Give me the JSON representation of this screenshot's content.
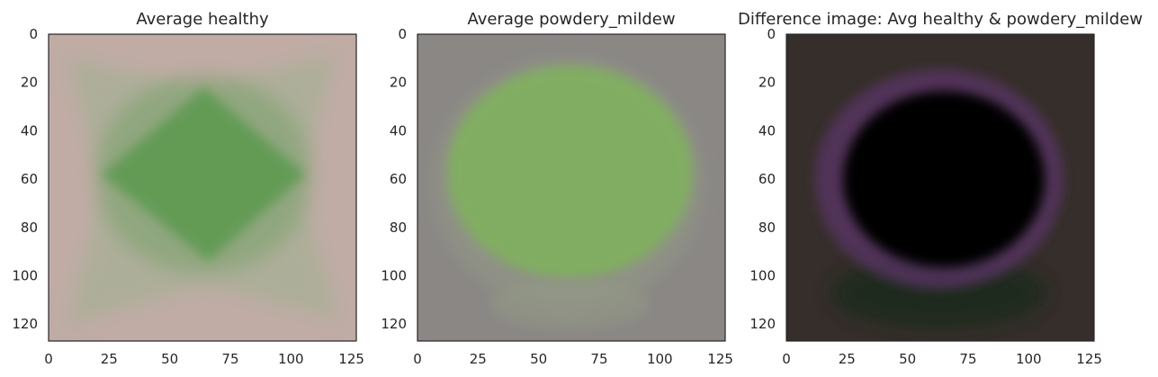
{
  "chart_data": [
    {
      "type": "heatmap",
      "title": "Average healthy",
      "xlabel": "",
      "ylabel": "",
      "xlim": [
        0,
        127
      ],
      "ylim": [
        127,
        0
      ],
      "xticks": [
        "0",
        "25",
        "50",
        "75",
        "100",
        "125"
      ],
      "yticks": [
        "0",
        "20",
        "40",
        "60",
        "80",
        "100",
        "120"
      ],
      "grid": false,
      "colors": {
        "background": "#c0aca5",
        "leaf": "#5b9a4f",
        "halo": "#9eb090"
      }
    },
    {
      "type": "heatmap",
      "title": "Average powdery_mildew",
      "xlabel": "",
      "ylabel": "",
      "xlim": [
        0,
        127
      ],
      "ylim": [
        127,
        0
      ],
      "xticks": [
        "0",
        "25",
        "50",
        "75",
        "100",
        "125"
      ],
      "yticks": [
        "0",
        "20",
        "40",
        "60",
        "80",
        "100",
        "120"
      ],
      "grid": false,
      "colors": {
        "background": "#8a8785",
        "leaf": "#7fb35c",
        "halo": "#949c86"
      }
    },
    {
      "type": "heatmap",
      "title": "Difference image: Avg healthy & powdery_mildew",
      "xlabel": "",
      "ylabel": "",
      "xlim": [
        0,
        127
      ],
      "ylim": [
        127,
        0
      ],
      "xticks": [
        "0",
        "25",
        "50",
        "75",
        "100",
        "125"
      ],
      "yticks": [
        "0",
        "20",
        "40",
        "60",
        "80",
        "100",
        "120"
      ],
      "grid": false,
      "colors": {
        "background": "#362e2b",
        "leaf": "#050306",
        "halo": "#5a3668",
        "lower": "#1f2c1a"
      }
    }
  ]
}
